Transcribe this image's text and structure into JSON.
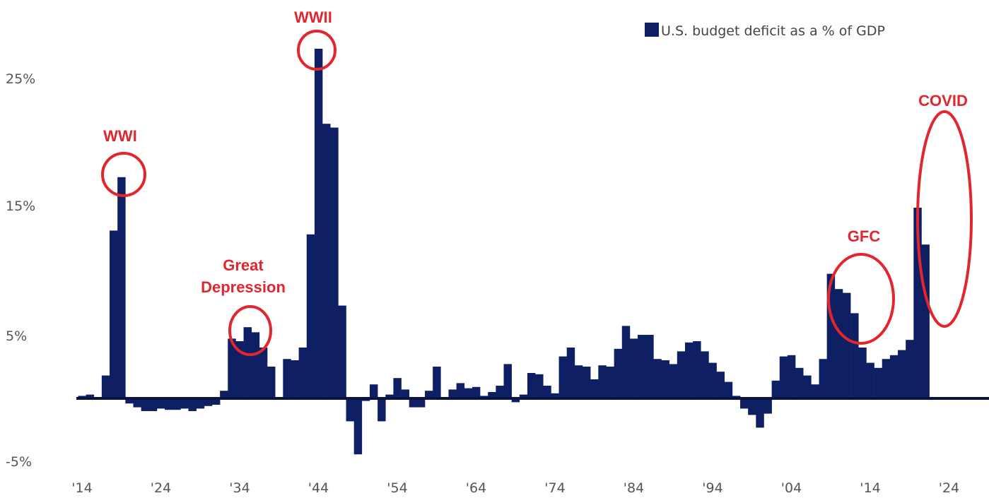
{
  "chart_data": {
    "type": "bar",
    "title": "",
    "xlabel": "",
    "ylabel": "",
    "ylim": [
      -5,
      28
    ],
    "colors": {
      "bar": "#0f1f63",
      "annotation": "#e1262d",
      "zero_line": "#0a1240"
    },
    "legend": {
      "position": "top-right",
      "label": "U.S. budget deficit as a % of GDP"
    },
    "y_ticks": [
      {
        "value": 25,
        "label": "25%"
      },
      {
        "value": 15,
        "label": "15%"
      },
      {
        "value": 5,
        "label": "5%"
      },
      {
        "value": -5,
        "label": "-5%"
      }
    ],
    "x_ticks": [
      {
        "year": 1914,
        "label": "'14"
      },
      {
        "year": 1924,
        "label": "'24"
      },
      {
        "year": 1934,
        "label": "'34"
      },
      {
        "year": 1944,
        "label": "'44"
      },
      {
        "year": 1954,
        "label": "'54"
      },
      {
        "year": 1964,
        "label": "'64"
      },
      {
        "year": 1974,
        "label": "'74"
      },
      {
        "year": 1984,
        "label": "'84"
      },
      {
        "year": 1994,
        "label": "'94"
      },
      {
        "year": 2004,
        "label": "'04"
      },
      {
        "year": 2014,
        "label": "'14"
      },
      {
        "year": 2024,
        "label": "'24"
      }
    ],
    "series": [
      {
        "name": "U.S. budget deficit as a % of GDP",
        "x": [
          1914,
          1915,
          1916,
          1917,
          1918,
          1919,
          1920,
          1921,
          1922,
          1923,
          1924,
          1925,
          1926,
          1927,
          1928,
          1929,
          1930,
          1931,
          1932,
          1933,
          1934,
          1935,
          1936,
          1937,
          1938,
          1939,
          1940,
          1941,
          1942,
          1943,
          1944,
          1945,
          1946,
          1947,
          1948,
          1949,
          1950,
          1951,
          1952,
          1953,
          1954,
          1955,
          1956,
          1957,
          1958,
          1959,
          1960,
          1961,
          1962,
          1963,
          1964,
          1965,
          1966,
          1967,
          1968,
          1969,
          1970,
          1971,
          1972,
          1973,
          1974,
          1975,
          1976,
          1977,
          1978,
          1979,
          1980,
          1981,
          1982,
          1983,
          1984,
          1985,
          1986,
          1987,
          1988,
          1989,
          1990,
          1991,
          1992,
          1993,
          1994,
          1995,
          1996,
          1997,
          1998,
          1999,
          2000,
          2001,
          2002,
          2003,
          2004,
          2005,
          2006,
          2007,
          2008,
          2009,
          2010,
          2011,
          2012,
          2013,
          2014,
          2015,
          2016,
          2017,
          2018,
          2019,
          2020,
          2021
        ],
        "values": [
          0.2,
          0.3,
          0.1,
          1.8,
          13.2,
          17.4,
          -0.4,
          -0.7,
          -1.0,
          -1.0,
          -0.8,
          -0.9,
          -0.9,
          -0.8,
          -1.0,
          -0.8,
          -0.6,
          -0.5,
          0.6,
          4.7,
          4.5,
          5.6,
          5.2,
          4.0,
          2.5,
          0.0,
          3.1,
          3.0,
          4.0,
          12.9,
          27.5,
          21.6,
          21.3,
          7.3,
          -1.8,
          -4.4,
          -0.2,
          1.1,
          -1.8,
          0.3,
          1.6,
          0.7,
          -0.7,
          -0.7,
          0.6,
          2.5,
          0.0,
          0.7,
          1.2,
          0.8,
          0.9,
          0.2,
          0.5,
          1.0,
          2.7,
          -0.3,
          0.3,
          2.0,
          1.9,
          1.0,
          0.4,
          3.3,
          4.0,
          2.6,
          2.5,
          1.5,
          2.6,
          2.5,
          3.9,
          5.7,
          4.7,
          5.0,
          5.0,
          3.1,
          3.0,
          2.7,
          3.7,
          4.4,
          4.5,
          3.7,
          2.8,
          2.1,
          1.3,
          0.2,
          -0.8,
          -1.3,
          -2.3,
          -1.2,
          1.4,
          3.3,
          3.4,
          2.4,
          1.8,
          1.1,
          3.1,
          9.8,
          8.6,
          8.3,
          6.7,
          4.0,
          2.8,
          2.4,
          3.1,
          3.4,
          3.8,
          4.6,
          15.0,
          12.1
        ]
      }
    ],
    "annotations": [
      {
        "label": "WWI",
        "year": 1919
      },
      {
        "label": "Great",
        "year": 1934
      },
      {
        "label": "Depression",
        "year": 1934
      },
      {
        "label": "WWII",
        "year": 1944
      },
      {
        "label": "GFC",
        "year": 2009
      },
      {
        "label": "COVID",
        "year": 2020
      }
    ]
  }
}
